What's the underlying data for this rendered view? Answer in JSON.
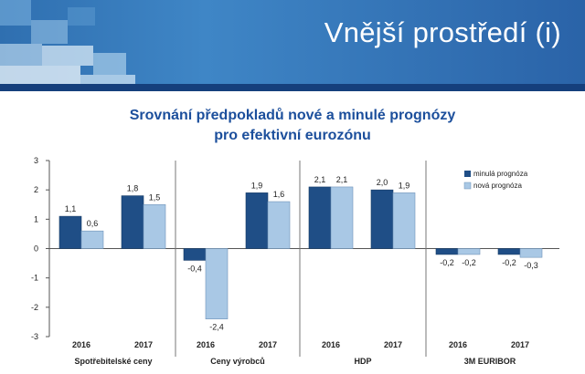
{
  "slide": {
    "title": "Vnější prostředí (i)"
  },
  "colors": {
    "previous": "#1f4e86",
    "new": "#a9c8e5",
    "header": "#3f86c6"
  },
  "chart_data": {
    "type": "bar",
    "title_line1": "Srovnání předpokladů nové a minulé prognózy",
    "title_line2": "pro efektivní eurozónu",
    "ylim": [
      -3,
      3
    ],
    "yticks": [
      "3",
      "2",
      "1",
      "0",
      "-1",
      "-2",
      "-3"
    ],
    "legend": [
      "minulá prognóza",
      "nová prognóza"
    ],
    "groups": [
      {
        "label": "Spotřebitelské ceny",
        "years": [
          "2016",
          "2017"
        ],
        "previous": [
          1.1,
          1.8
        ],
        "new": [
          0.6,
          1.5
        ],
        "previous_labels": [
          "1,1",
          "1,8"
        ],
        "new_labels": [
          "0,6",
          "1,5"
        ]
      },
      {
        "label": "Ceny výrobců",
        "years": [
          "2016",
          "2017"
        ],
        "previous": [
          -0.4,
          1.9
        ],
        "new": [
          -2.4,
          1.6
        ],
        "previous_labels": [
          "-0,4",
          "1,9"
        ],
        "new_labels": [
          "-2,4",
          "1,6"
        ]
      },
      {
        "label": "HDP",
        "years": [
          "2016",
          "2017"
        ],
        "previous": [
          2.1,
          2.0
        ],
        "new": [
          2.1,
          1.9
        ],
        "previous_labels": [
          "2,1",
          "2,0"
        ],
        "new_labels": [
          "2,1",
          "1,9"
        ]
      },
      {
        "label": "3M EURIBOR",
        "years": [
          "2016",
          "2017"
        ],
        "previous": [
          -0.2,
          -0.2
        ],
        "new": [
          -0.2,
          -0.3
        ],
        "previous_labels": [
          "-0,2",
          "-0,2"
        ],
        "new_labels": [
          "-0,2",
          "-0,3"
        ]
      }
    ]
  }
}
